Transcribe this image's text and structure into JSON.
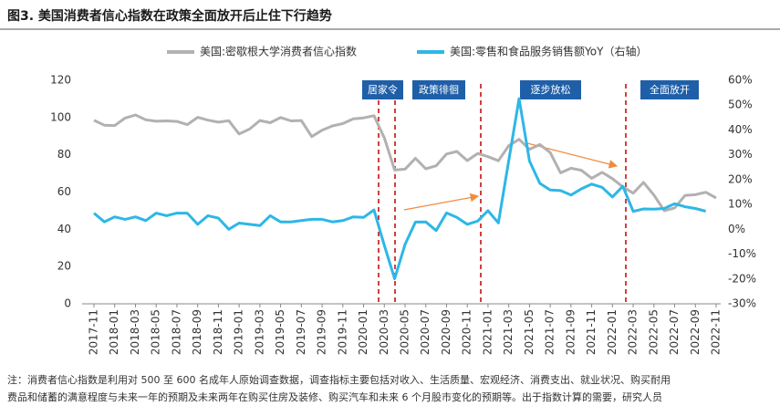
{
  "chart_data": {
    "type": "line",
    "title": "图3. 美国消费者信心指数在政策全面放开后止住下行趋势",
    "categories": [
      "2017-11",
      null,
      "2018-01",
      null,
      "2018-03",
      null,
      "2018-05",
      null,
      "2018-07",
      null,
      "2018-09",
      null,
      "2018-11",
      null,
      "2019-01",
      null,
      "2019-03",
      null,
      "2019-05",
      null,
      "2019-07",
      null,
      "2019-09",
      null,
      "2019-11",
      null,
      "2020-01",
      null,
      "2020-03",
      null,
      "2020-05",
      null,
      "2020-07",
      null,
      "2020-09",
      null,
      "2020-11",
      null,
      "2021-01",
      null,
      "2021-03",
      null,
      "2021-05",
      null,
      "2021-07",
      null,
      "2021-09",
      null,
      "2021-11",
      null,
      "2022-01",
      null,
      "2022-03",
      null,
      "2022-05",
      null,
      "2022-07",
      null,
      "2022-09",
      null,
      "2022-11"
    ],
    "series": [
      {
        "name": "美国:密歇根大学消费者信心指数",
        "color": "#b3b0b0",
        "values": [
          98.5,
          95.9,
          95.7,
          99.7,
          101.4,
          98.8,
          98.0,
          98.2,
          97.9,
          96.2,
          100.1,
          98.6,
          97.5,
          98.3,
          91.2,
          93.8,
          98.4,
          97.2,
          100.0,
          98.2,
          98.4,
          89.8,
          93.2,
          95.5,
          96.8,
          99.3,
          99.8,
          101.0,
          89.1,
          71.8,
          72.3,
          78.1,
          72.5,
          74.1,
          80.4,
          81.8,
          76.9,
          80.7,
          79.0,
          76.8,
          84.9,
          88.3,
          82.9,
          85.5,
          81.2,
          70.3,
          72.8,
          71.7,
          67.4,
          70.6,
          67.2,
          62.8,
          59.4,
          65.2,
          58.4,
          50.0,
          51.5,
          58.2,
          58.6,
          59.9,
          56.8
        ]
      },
      {
        "name": "美国:零售和食品服务销售额YoY（右轴）",
        "color": "#2db7e6",
        "axis": "y2",
        "values": [
          6.5,
          3.0,
          5.0,
          4.0,
          5.0,
          3.5,
          6.5,
          5.5,
          6.5,
          6.5,
          2.0,
          5.5,
          4.5,
          0.0,
          2.5,
          2.0,
          1.5,
          5.5,
          3.0,
          3.0,
          3.5,
          4.0,
          4.0,
          3.0,
          3.5,
          5.0,
          4.8,
          7.8,
          -6.5,
          -19.9,
          -6.1,
          2.9,
          3.0,
          -0.5,
          6.6,
          4.8,
          2.0,
          3.3,
          7.5,
          2.6,
          27.7,
          52.6,
          27.5,
          18.5,
          15.8,
          15.6,
          13.8,
          16.3,
          18.2,
          16.9,
          13.0,
          17.3,
          7.2,
          8.2,
          8.1,
          8.4,
          10.3,
          9.1,
          8.4,
          7.3,
          null
        ]
      }
    ],
    "ylim": [
      0,
      120
    ],
    "yticks": [
      0,
      20,
      40,
      60,
      80,
      100,
      120
    ],
    "y2lim": [
      -30,
      60
    ],
    "y2ticks": [
      {
        "value": -30,
        "label": "-30%"
      },
      {
        "value": -20,
        "label": "-20%"
      },
      {
        "value": -10,
        "label": "-10%"
      },
      {
        "value": 0,
        "label": "0%"
      },
      {
        "value": 10,
        "label": "10%"
      },
      {
        "value": 20,
        "label": "20%"
      },
      {
        "value": 30,
        "label": "30%"
      },
      {
        "value": 40,
        "label": "40%"
      },
      {
        "value": 50,
        "label": "50%"
      },
      {
        "value": 60,
        "label": "60%"
      }
    ],
    "annotations": [
      "居家令",
      "政策徘徊",
      "逐步放松",
      "全面放开"
    ],
    "note": [
      "注：消费者信心指数是利用对 500 至 600 名成年人原始调查数据，调查指标主要包括对收入、生活质量、宏观经济、消费支出、就业状况、购买耐用",
      "费品和储蓄的满意程度与未来一年的预期及未来两年在购买住房及装修、购买汽车和未来 6 个月股市变化的预期等。出于指数计算的需要，研究人员"
    ]
  }
}
